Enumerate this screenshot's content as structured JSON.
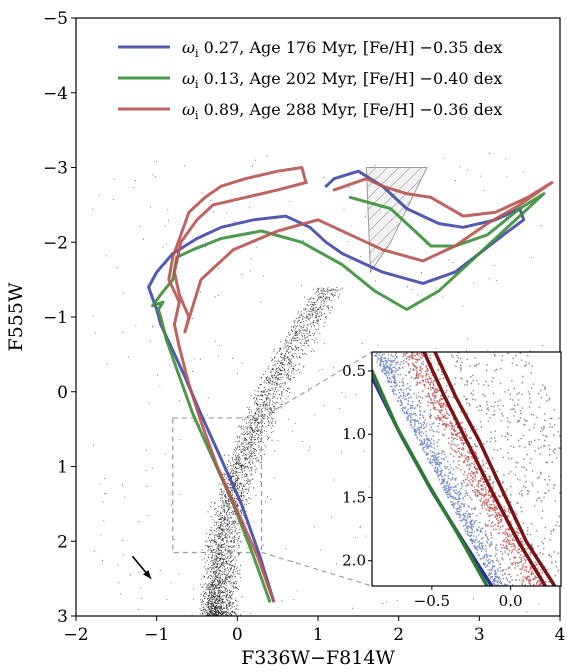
{
  "chart_data": [
    {
      "type": "scatter",
      "xlabel": "F336W−F814W",
      "ylabel": "F555W",
      "xlim": [
        -2,
        4
      ],
      "ylim": [
        3,
        -5
      ],
      "y_inverted": true,
      "x_ticks": [
        -2,
        -1,
        0,
        1,
        2,
        3,
        4
      ],
      "x_tick_labels": [
        "−2",
        "−1",
        "0",
        "1",
        "2",
        "3",
        "4"
      ],
      "y_ticks": [
        -5,
        -4,
        -3,
        -2,
        -1,
        0,
        1,
        2,
        3
      ],
      "y_tick_labels": [
        "−5",
        "−4",
        "−3",
        "−2",
        "−1",
        "0",
        "1",
        "2",
        "3"
      ],
      "legend_position": "top-right",
      "series": [
        {
          "name": "ωi 0.27, Age 176 Myr, [Fe/H] −0.35 dex",
          "legend_label": {
            "omega": "ω",
            "sub": "i",
            "rest": " 0.27, Age 176 Myr, [Fe/H] −0.35 dex"
          },
          "color": "#3f48a8",
          "x": [
            0.45,
            0.28,
            0.05,
            -0.2,
            -0.45,
            -0.65,
            -0.82,
            -0.95,
            -1.0,
            -1.05,
            -1.1,
            -1.0,
            -0.8,
            -0.5,
            -0.2,
            0.2,
            0.6,
            0.9,
            1.1,
            1.3,
            1.8,
            2.3,
            2.7,
            3.0,
            3.3,
            3.55,
            3.5,
            3.2,
            2.8,
            2.5,
            2.1,
            1.8,
            1.5,
            1.2,
            1.1
          ],
          "y": [
            2.8,
            2.2,
            1.5,
            0.9,
            0.3,
            -0.2,
            -0.6,
            -0.9,
            -1.1,
            -1.25,
            -1.4,
            -1.6,
            -1.85,
            -2.05,
            -2.2,
            -2.3,
            -2.35,
            -2.2,
            -2.0,
            -1.85,
            -1.6,
            -1.45,
            -1.6,
            -1.85,
            -2.1,
            -2.3,
            -2.45,
            -2.3,
            -2.2,
            -2.25,
            -2.45,
            -2.75,
            -2.95,
            -2.85,
            -2.75
          ]
        },
        {
          "name": "ωi 0.13, Age 202 Myr, [Fe/H] −0.40 dex",
          "legend_label": {
            "omega": "ω",
            "sub": "i",
            "rest": " 0.13, Age 202 Myr, [Fe/H] −0.40 dex"
          },
          "color": "#3a8f3a",
          "x": [
            0.4,
            0.2,
            -0.05,
            -0.3,
            -0.55,
            -0.75,
            -0.88,
            -0.95,
            -0.98,
            -0.92,
            -1.05,
            -0.95,
            -0.8,
            -0.75,
            -0.55,
            -0.2,
            0.3,
            0.8,
            1.3,
            1.7,
            2.1,
            2.5,
            2.9,
            3.3,
            3.8,
            3.5,
            3.1,
            2.7,
            2.4,
            2.2,
            1.9,
            1.4
          ],
          "y": [
            2.8,
            2.2,
            1.5,
            0.9,
            0.3,
            -0.3,
            -0.7,
            -1.0,
            -1.1,
            -1.2,
            -1.15,
            -1.3,
            -1.5,
            -1.8,
            -1.9,
            -2.05,
            -2.15,
            -2.0,
            -1.7,
            -1.35,
            -1.1,
            -1.35,
            -1.75,
            -2.15,
            -2.65,
            -2.45,
            -2.1,
            -1.95,
            -1.95,
            -2.15,
            -2.45,
            -2.6
          ]
        },
        {
          "name": "ωi 0.89, Age 288 Myr, [Fe/H] −0.36 dex",
          "legend_label": {
            "omega": "ω",
            "sub": "i",
            "rest": " 0.89, Age 288 Myr, [Fe/H] −0.36 dex"
          },
          "color": "#b85450",
          "x": [
            0.45,
            0.25,
            0.0,
            -0.25,
            -0.45,
            -0.6,
            -0.72,
            -0.78,
            -0.72,
            -0.85,
            -0.8,
            -0.7,
            -0.6,
            -0.4,
            -0.2,
            0.1,
            0.5,
            0.8,
            0.85,
            0.5,
            0.1,
            -0.3,
            -0.5,
            -0.7,
            -0.78,
            -0.72,
            -0.6,
            -0.65,
            -0.45,
            -0.05,
            0.5,
            1.0,
            1.4,
            1.8,
            2.3,
            2.7,
            3.1,
            3.5,
            3.9,
            3.6,
            3.2,
            2.8,
            2.4,
            2.1,
            1.8,
            1.6,
            1.2
          ],
          "y": [
            2.8,
            2.2,
            1.6,
            1.0,
            0.4,
            -0.1,
            -0.6,
            -0.9,
            -1.2,
            -1.5,
            -1.8,
            -2.1,
            -2.4,
            -2.6,
            -2.75,
            -2.85,
            -2.95,
            -3.0,
            -2.8,
            -2.7,
            -2.6,
            -2.5,
            -2.3,
            -2.0,
            -1.6,
            -1.3,
            -1.0,
            -0.8,
            -1.5,
            -1.9,
            -2.15,
            -2.3,
            -2.1,
            -1.9,
            -1.75,
            -1.95,
            -2.25,
            -2.5,
            -2.8,
            -2.6,
            -2.4,
            -2.35,
            -2.6,
            -2.65,
            -2.75,
            -2.85,
            -2.7
          ]
        }
      ],
      "arrow": {
        "x_from": -1.3,
        "y_from": 2.2,
        "x_to": -1.07,
        "y_to": 2.5
      },
      "zoom_box": {
        "x": [
          -0.8,
          0.3
        ],
        "y": [
          0.35,
          2.15
        ]
      },
      "hatched_region": {
        "x": [
          1.6,
          2.0,
          2.35,
          1.9,
          1.65
        ],
        "y": [
          -3.0,
          -3.0,
          -3.0,
          -2.0,
          -1.6
        ]
      }
    },
    {
      "type": "scatter",
      "role": "inset",
      "xlim": [
        -0.88,
        0.32
      ],
      "ylim": [
        2.2,
        0.35
      ],
      "y_inverted": true,
      "x_ticks": [
        -0.5,
        0.0
      ],
      "x_tick_labels": [
        "−0.5",
        "0.0"
      ],
      "y_ticks": [
        0.5,
        1.0,
        1.5,
        2.0
      ],
      "y_tick_labels": [
        "0.5",
        "1.0",
        "1.5",
        "2.0"
      ],
      "series": [
        {
          "name": "",
          "color": "#2c2fa0",
          "x": [
            -0.88,
            -0.7,
            -0.5,
            -0.3,
            -0.12
          ],
          "y": [
            0.55,
            1.0,
            1.45,
            1.85,
            2.2
          ]
        },
        {
          "name": "",
          "color": "#2f7a2f",
          "x": [
            -0.88,
            -0.72,
            -0.52,
            -0.32,
            -0.15
          ],
          "y": [
            0.5,
            0.95,
            1.4,
            1.82,
            2.2
          ]
        },
        {
          "name": "",
          "color": "#7a1414",
          "x": [
            -0.55,
            -0.42,
            -0.28,
            -0.12,
            0.05,
            0.22
          ],
          "y": [
            0.35,
            0.7,
            1.05,
            1.45,
            1.85,
            2.2
          ]
        },
        {
          "name": "",
          "color": "#7a1414",
          "x": [
            -0.48,
            -0.35,
            -0.2,
            -0.05,
            0.1,
            0.28
          ],
          "y": [
            0.35,
            0.7,
            1.05,
            1.45,
            1.85,
            2.2
          ]
        }
      ]
    }
  ]
}
